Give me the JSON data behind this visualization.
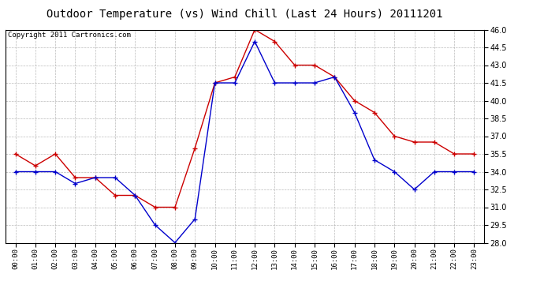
{
  "title": "Outdoor Temperature (vs) Wind Chill (Last 24 Hours) 20111201",
  "copyright": "Copyright 2011 Cartronics.com",
  "x_labels": [
    "00:00",
    "01:00",
    "02:00",
    "03:00",
    "04:00",
    "05:00",
    "06:00",
    "07:00",
    "08:00",
    "09:00",
    "10:00",
    "11:00",
    "12:00",
    "13:00",
    "14:00",
    "15:00",
    "16:00",
    "17:00",
    "18:00",
    "19:00",
    "20:00",
    "21:00",
    "22:00",
    "23:00"
  ],
  "outdoor_temp": [
    35.5,
    34.5,
    35.5,
    33.5,
    33.5,
    32.0,
    32.0,
    31.0,
    31.0,
    36.0,
    41.5,
    42.0,
    46.0,
    45.0,
    43.0,
    43.0,
    42.0,
    40.0,
    39.0,
    37.0,
    36.5,
    36.5,
    35.5,
    35.5
  ],
  "wind_chill": [
    34.0,
    34.0,
    34.0,
    33.0,
    33.5,
    33.5,
    32.0,
    29.5,
    28.0,
    30.0,
    41.5,
    41.5,
    45.0,
    41.5,
    41.5,
    41.5,
    42.0,
    39.0,
    35.0,
    34.0,
    32.5,
    34.0,
    34.0,
    34.0
  ],
  "temp_color": "#cc0000",
  "chill_color": "#0000cc",
  "ylim": [
    28.0,
    46.0
  ],
  "yticks": [
    28.0,
    29.5,
    31.0,
    32.5,
    34.0,
    35.5,
    37.0,
    38.5,
    40.0,
    41.5,
    43.0,
    44.5,
    46.0
  ],
  "background_color": "#ffffff",
  "grid_color": "#aaaaaa",
  "title_fontsize": 10,
  "copyright_fontsize": 6.5
}
